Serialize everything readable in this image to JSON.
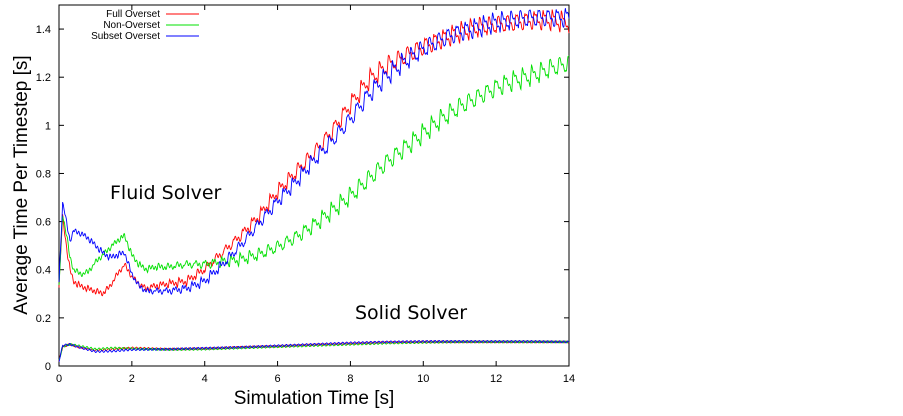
{
  "chart_data": {
    "type": "line",
    "title": "",
    "xlabel": "Simulation Time [s]",
    "ylabel": "Average Time Per Timestep [s]",
    "xlim": [
      0,
      14
    ],
    "ylim": [
      0,
      1.5
    ],
    "x_ticks": [
      0,
      2,
      4,
      6,
      8,
      10,
      12,
      14
    ],
    "x_tick_labels": [
      "0",
      "2",
      "4",
      "6",
      "8",
      "10",
      "12",
      "14"
    ],
    "y_ticks": [
      0,
      0.2,
      0.4,
      0.6,
      0.8,
      1,
      1.2,
      1.4
    ],
    "y_tick_labels": [
      "0",
      "0.2",
      "0.4",
      "0.6",
      "0.8",
      "1",
      "1.2",
      "1.4"
    ],
    "grid": false,
    "legend_position": "top-left",
    "annotations": [
      "Fluid Solver",
      "Solid Solver"
    ],
    "series": [
      {
        "name": "Full Overset",
        "color": "#ff0000",
        "group": "fluid",
        "x": [
          0,
          0.1,
          0.2,
          0.3,
          0.4,
          0.6,
          0.8,
          1.0,
          1.2,
          1.4,
          1.6,
          1.8,
          2.0,
          2.2,
          2.4,
          2.6,
          3.0,
          3.5,
          4.0,
          4.5,
          5.0,
          5.5,
          6.0,
          6.5,
          7.0,
          7.5,
          8.0,
          8.5,
          9.0,
          9.5,
          10.0,
          10.5,
          11.0,
          11.5,
          12.0,
          12.5,
          13.0,
          13.5,
          14.0
        ],
        "y": [
          0.33,
          0.62,
          0.5,
          0.4,
          0.35,
          0.33,
          0.32,
          0.31,
          0.3,
          0.33,
          0.38,
          0.42,
          0.37,
          0.34,
          0.32,
          0.33,
          0.34,
          0.35,
          0.4,
          0.47,
          0.54,
          0.62,
          0.72,
          0.8,
          0.88,
          0.97,
          1.08,
          1.18,
          1.24,
          1.28,
          1.32,
          1.35,
          1.38,
          1.4,
          1.41,
          1.42,
          1.43,
          1.43,
          1.42
        ]
      },
      {
        "name": "Non-Overset",
        "color": "#00e000",
        "group": "fluid",
        "x": [
          0,
          0.1,
          0.2,
          0.3,
          0.4,
          0.6,
          0.8,
          1.0,
          1.2,
          1.4,
          1.6,
          1.8,
          2.0,
          2.2,
          2.4,
          2.6,
          3.0,
          3.5,
          4.0,
          4.5,
          5.0,
          5.5,
          6.0,
          6.5,
          7.0,
          7.5,
          8.0,
          8.5,
          9.0,
          9.5,
          10.0,
          10.5,
          11.0,
          11.5,
          12.0,
          12.5,
          13.0,
          13.5,
          14.0
        ],
        "y": [
          0.33,
          0.63,
          0.55,
          0.45,
          0.4,
          0.38,
          0.39,
          0.43,
          0.46,
          0.49,
          0.52,
          0.54,
          0.46,
          0.42,
          0.4,
          0.41,
          0.41,
          0.42,
          0.42,
          0.43,
          0.44,
          0.46,
          0.49,
          0.53,
          0.58,
          0.64,
          0.7,
          0.77,
          0.84,
          0.9,
          0.96,
          1.02,
          1.07,
          1.11,
          1.15,
          1.18,
          1.2,
          1.23,
          1.25
        ]
      },
      {
        "name": "Subset Overset",
        "color": "#0000ff",
        "group": "fluid",
        "x": [
          0,
          0.1,
          0.2,
          0.3,
          0.4,
          0.6,
          0.8,
          1.0,
          1.2,
          1.4,
          1.6,
          1.8,
          2.0,
          2.2,
          2.4,
          2.6,
          3.0,
          3.5,
          4.0,
          4.5,
          5.0,
          5.5,
          6.0,
          6.5,
          7.0,
          7.5,
          8.0,
          8.5,
          9.0,
          9.5,
          10.0,
          10.5,
          11.0,
          11.5,
          12.0,
          12.5,
          13.0,
          13.5,
          14.0
        ],
        "y": [
          0.35,
          0.68,
          0.6,
          0.52,
          0.56,
          0.55,
          0.53,
          0.5,
          0.47,
          0.45,
          0.46,
          0.47,
          0.38,
          0.33,
          0.31,
          0.31,
          0.31,
          0.32,
          0.35,
          0.42,
          0.5,
          0.59,
          0.68,
          0.76,
          0.85,
          0.93,
          1.02,
          1.12,
          1.2,
          1.26,
          1.31,
          1.35,
          1.38,
          1.4,
          1.42,
          1.43,
          1.44,
          1.44,
          1.44
        ]
      },
      {
        "name": "Full Overset",
        "color": "#ff0000",
        "group": "solid",
        "x": [
          0,
          0.1,
          0.3,
          0.5,
          1.0,
          1.5,
          2.0,
          3.0,
          4.0,
          5.0,
          6.0,
          7.0,
          8.0,
          9.0,
          10.0,
          11.0,
          12.0,
          13.0,
          14.0
        ],
        "y": [
          0.02,
          0.08,
          0.09,
          0.08,
          0.065,
          0.07,
          0.075,
          0.07,
          0.072,
          0.078,
          0.082,
          0.088,
          0.093,
          0.098,
          0.1,
          0.1,
          0.1,
          0.1,
          0.1
        ]
      },
      {
        "name": "Non-Overset",
        "color": "#00e000",
        "group": "solid",
        "x": [
          0,
          0.1,
          0.3,
          0.5,
          1.0,
          1.5,
          2.0,
          3.0,
          4.0,
          5.0,
          6.0,
          7.0,
          8.0,
          9.0,
          10.0,
          11.0,
          12.0,
          13.0,
          14.0
        ],
        "y": [
          0.02,
          0.08,
          0.09,
          0.085,
          0.07,
          0.075,
          0.072,
          0.068,
          0.07,
          0.075,
          0.08,
          0.085,
          0.09,
          0.095,
          0.098,
          0.1,
          0.1,
          0.1,
          0.1
        ]
      },
      {
        "name": "Subset Overset",
        "color": "#0000ff",
        "group": "solid",
        "x": [
          0,
          0.1,
          0.3,
          0.5,
          1.0,
          1.5,
          2.0,
          3.0,
          4.0,
          5.0,
          6.0,
          7.0,
          8.0,
          9.0,
          10.0,
          11.0,
          12.0,
          13.0,
          14.0
        ],
        "y": [
          0.02,
          0.085,
          0.09,
          0.08,
          0.06,
          0.062,
          0.068,
          0.07,
          0.074,
          0.078,
          0.084,
          0.09,
          0.096,
          0.1,
          0.102,
          0.102,
          0.102,
          0.102,
          0.1
        ]
      }
    ]
  }
}
